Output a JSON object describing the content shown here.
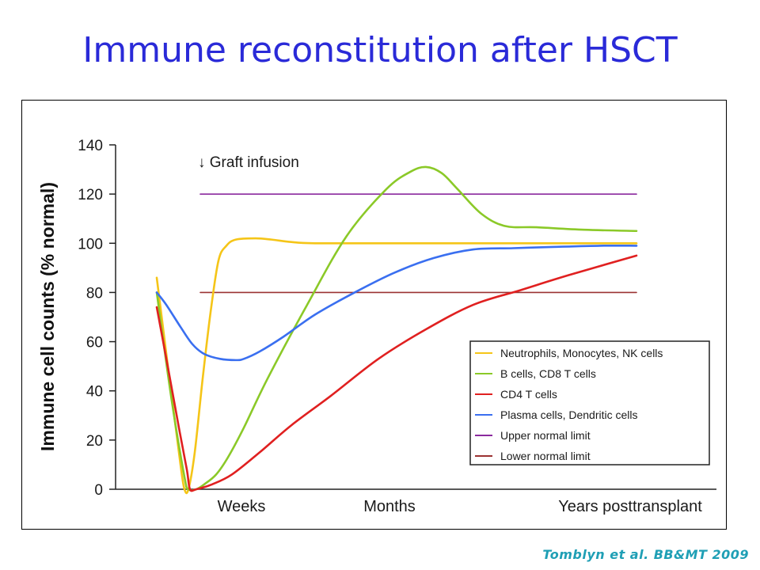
{
  "slide": {
    "title": "Immune reconstitution after HSCT",
    "citation": "Tomblyn et al. BB&MT 2009"
  },
  "chart_data": {
    "type": "line",
    "title": "",
    "ylabel": "Immune cell counts (% normal)",
    "xlabel": "",
    "ylim": [
      0,
      140
    ],
    "yticks": [
      0,
      20,
      40,
      60,
      80,
      100,
      120,
      140
    ],
    "x_categories": [
      "Weeks",
      "Months",
      "Years posttransplant"
    ],
    "annotation": "↓ Graft infusion",
    "legend_position": "bottom-right",
    "grid": false,
    "series": [
      {
        "name": "Neutrophils, Monocytes, NK cells",
        "color": "#f5c518",
        "points": [
          [
            0,
            86
          ],
          [
            18,
            40
          ],
          [
            30,
            10
          ],
          [
            35,
            0
          ],
          [
            40,
            0
          ],
          [
            48,
            15
          ],
          [
            58,
            45
          ],
          [
            68,
            72
          ],
          [
            78,
            93
          ],
          [
            88,
            99
          ],
          [
            100,
            101.5
          ],
          [
            125,
            102
          ],
          [
            145,
            101.5
          ],
          [
            170,
            100.5
          ],
          [
            200,
            100
          ],
          [
            300,
            100
          ],
          [
            400,
            100
          ],
          [
            540,
            100
          ],
          [
            606,
            100
          ]
        ]
      },
      {
        "name": "B cells, CD8 T cells",
        "color": "#8bc928",
        "points": [
          [
            0,
            80
          ],
          [
            18,
            38
          ],
          [
            35,
            5
          ],
          [
            40,
            0
          ],
          [
            50,
            0
          ],
          [
            60,
            2
          ],
          [
            75,
            6
          ],
          [
            90,
            13
          ],
          [
            110,
            25
          ],
          [
            140,
            45
          ],
          [
            190,
            75
          ],
          [
            240,
            103
          ],
          [
            290,
            122
          ],
          [
            320,
            129
          ],
          [
            340,
            131
          ],
          [
            360,
            128.5
          ],
          [
            380,
            122
          ],
          [
            410,
            112
          ],
          [
            440,
            107
          ],
          [
            480,
            106.5
          ],
          [
            540,
            105.5
          ],
          [
            606,
            105
          ]
        ]
      },
      {
        "name": "CD4 T cells",
        "color": "#e02020",
        "points": [
          [
            0,
            74
          ],
          [
            15,
            48
          ],
          [
            28,
            25
          ],
          [
            38,
            8
          ],
          [
            42,
            0
          ],
          [
            50,
            0
          ],
          [
            70,
            2
          ],
          [
            95,
            6
          ],
          [
            130,
            15
          ],
          [
            170,
            26
          ],
          [
            220,
            38
          ],
          [
            280,
            53
          ],
          [
            340,
            65
          ],
          [
            400,
            75
          ],
          [
            460,
            81
          ],
          [
            520,
            87
          ],
          [
            606,
            95
          ]
        ]
      },
      {
        "name": "Plasma cells, Dendritic cells",
        "color": "#3a6ff0",
        "points": [
          [
            0,
            80
          ],
          [
            12,
            75
          ],
          [
            30,
            66
          ],
          [
            45,
            59
          ],
          [
            60,
            55
          ],
          [
            80,
            53
          ],
          [
            100,
            52.5
          ],
          [
            110,
            53
          ],
          [
            130,
            56
          ],
          [
            160,
            62
          ],
          [
            200,
            71
          ],
          [
            250,
            80
          ],
          [
            300,
            88
          ],
          [
            350,
            94
          ],
          [
            400,
            97.5
          ],
          [
            450,
            98
          ],
          [
            500,
            98.5
          ],
          [
            560,
            99
          ],
          [
            606,
            99
          ]
        ]
      },
      {
        "name": "Upper normal limit",
        "color": "#8b2a9e",
        "points": [
          [
            55,
            120
          ],
          [
            606,
            120
          ]
        ]
      },
      {
        "name": "Lower normal limit",
        "color": "#9b3232",
        "points": [
          [
            55,
            80
          ],
          [
            606,
            80
          ]
        ]
      }
    ]
  }
}
